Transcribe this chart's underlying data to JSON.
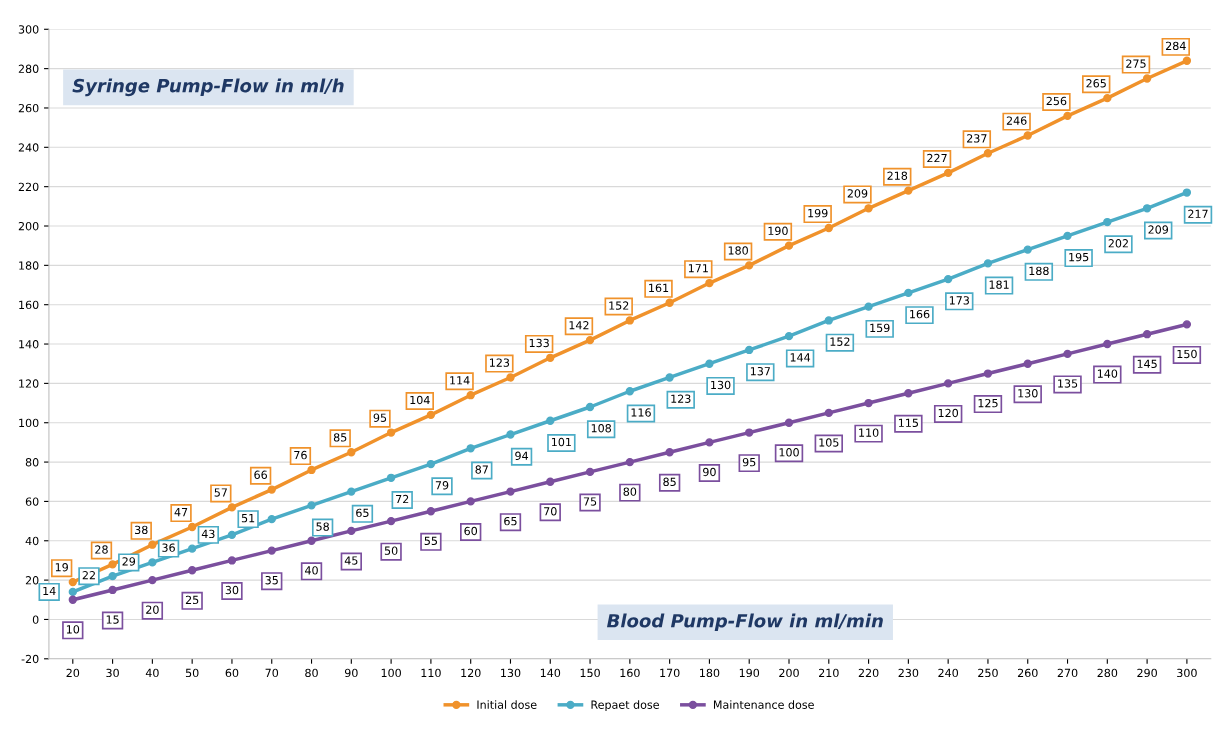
{
  "chart_data": {
    "type": "line",
    "xlabel": "Blood Pump-Flow in ml/min",
    "ylabel": "Syringe Pump-Flow in ml/h",
    "categories": [
      "20",
      "30",
      "40",
      "50",
      "60",
      "70",
      "80",
      "90",
      "100",
      "110",
      "120",
      "130",
      "140",
      "150",
      "160",
      "170",
      "180",
      "190",
      "200",
      "210",
      "220",
      "230",
      "240",
      "250",
      "260",
      "270",
      "280",
      "290",
      "300"
    ],
    "series": [
      {
        "name": "Initial dose",
        "color": "#f0922b",
        "values": [
          19,
          28,
          38,
          47,
          57,
          66,
          76,
          85,
          95,
          104,
          114,
          123,
          133,
          142,
          152,
          161,
          171,
          180,
          190,
          199,
          209,
          218,
          227,
          237,
          246,
          256,
          265,
          275,
          284
        ]
      },
      {
        "name": "Repaet dose",
        "color": "#4bacc6",
        "values": [
          14,
          22,
          29,
          36,
          43,
          51,
          58,
          65,
          72,
          79,
          87,
          94,
          101,
          108,
          116,
          123,
          130,
          137,
          144,
          152,
          159,
          166,
          173,
          181,
          188,
          195,
          202,
          209,
          217
        ]
      },
      {
        "name": "Maintenance dose",
        "color": "#7b4f9e",
        "values": [
          10,
          15,
          20,
          25,
          30,
          35,
          40,
          45,
          50,
          55,
          60,
          65,
          70,
          75,
          80,
          85,
          90,
          95,
          100,
          105,
          110,
          115,
          120,
          125,
          130,
          135,
          140,
          145,
          150
        ]
      }
    ],
    "ylim": [
      -20,
      300
    ],
    "yticks": [
      -20,
      0,
      20,
      40,
      60,
      80,
      100,
      120,
      140,
      160,
      180,
      200,
      220,
      240,
      260,
      280,
      300
    ],
    "grid": "y",
    "legend": "bottom",
    "marker": "circle",
    "line_style": "solid",
    "data_labels": true
  }
}
